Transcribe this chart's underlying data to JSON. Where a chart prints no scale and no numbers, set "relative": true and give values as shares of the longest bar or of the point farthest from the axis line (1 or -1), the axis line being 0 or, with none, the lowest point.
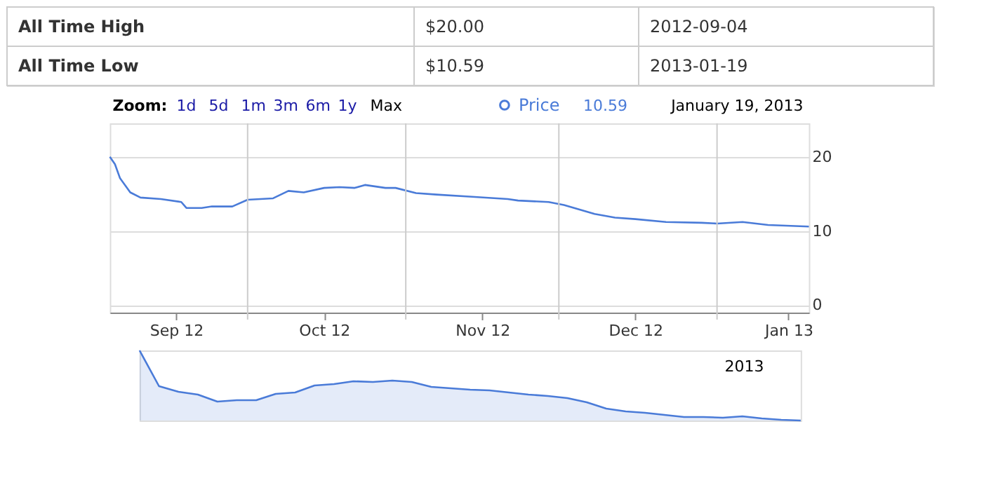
{
  "chart_data": [
    {
      "type": "line",
      "annotations": [
        "All Time High",
        "$20.00",
        "2012-09-04",
        "All Time Low",
        "$10.59",
        "2013-01-19",
        "Zoom:",
        "1d",
        "5d",
        "1m",
        "3m",
        "6m",
        "1y",
        "Max",
        "10.59",
        "January 19, 2013"
      ],
      "x": [
        "2012-09-04",
        "2012-09-05",
        "2012-09-06",
        "2012-09-08",
        "2012-09-10",
        "2012-09-14",
        "2012-09-18",
        "2012-09-19",
        "2012-09-22",
        "2012-09-24",
        "2012-09-28",
        "2012-10-01",
        "2012-10-06",
        "2012-10-09",
        "2012-10-12",
        "2012-10-16",
        "2012-10-19",
        "2012-10-22",
        "2012-10-24",
        "2012-10-28",
        "2012-10-30",
        "2012-11-03",
        "2012-11-07",
        "2012-11-14",
        "2012-11-21",
        "2012-11-23",
        "2012-11-29",
        "2012-12-02",
        "2012-12-04",
        "2012-12-08",
        "2012-12-12",
        "2012-12-16",
        "2012-12-22",
        "2012-12-29",
        "2013-01-01",
        "2013-01-06",
        "2013-01-11",
        "2013-01-19"
      ],
      "series": [
        {
          "name": "Price",
          "color": "#4a7bd8",
          "values": [
            20.0,
            19.0,
            17.1,
            15.2,
            14.5,
            14.3,
            13.9,
            13.1,
            13.1,
            13.3,
            13.3,
            14.2,
            14.4,
            15.4,
            15.2,
            15.8,
            15.9,
            15.8,
            16.2,
            15.8,
            15.8,
            15.1,
            14.9,
            14.6,
            14.3,
            14.1,
            13.9,
            13.5,
            13.1,
            12.3,
            11.8,
            11.6,
            11.2,
            11.1,
            11.0,
            11.2,
            10.8,
            10.59
          ]
        }
      ],
      "xlim": [
        "2012-09-04",
        "2013-01-19"
      ],
      "xticks": [
        {
          "value": "2012-09-17",
          "label": "Sep 12"
        },
        {
          "value": "2012-10-01",
          "label": null
        },
        {
          "value": "2012-10-16",
          "label": "Oct 12"
        },
        {
          "value": "2012-11-01",
          "label": null
        },
        {
          "value": "2012-11-16",
          "label": "Nov 12"
        },
        {
          "value": "2012-12-01",
          "label": null
        },
        {
          "value": "2012-12-16",
          "label": "Dec 12"
        },
        {
          "value": "2013-01-01",
          "label": null
        },
        {
          "value": "2013-01-15",
          "label": "Jan 13"
        }
      ],
      "ylim": [
        -1,
        24.5
      ],
      "yticks": [
        0,
        10,
        20
      ],
      "grid": true,
      "legend": "top right"
    },
    {
      "type": "area",
      "relative": true,
      "annotations": [
        "2013"
      ],
      "categories": [
        null,
        null,
        null,
        null,
        null,
        null,
        null,
        null,
        null,
        null,
        null,
        null,
        null,
        null,
        null,
        null,
        null,
        null,
        null,
        null,
        null,
        null,
        null,
        null,
        null,
        null,
        null,
        null,
        null,
        null,
        null,
        null,
        null,
        null,
        null
      ],
      "series": [
        {
          "color": "#4a7bd8",
          "values": [
            1,
            0.49,
            0.41,
            0.37,
            0.27,
            0.29,
            0.29,
            0.38,
            0.4,
            0.5,
            0.52,
            0.56,
            0.55,
            0.57,
            0.55,
            0.48,
            0.46,
            0.44,
            0.43,
            0.4,
            0.37,
            0.35,
            0.32,
            0.26,
            0.17,
            0.13,
            0.11,
            0.08,
            0.05,
            0.05,
            0.04,
            0.06,
            0.03,
            0.01,
            0
          ]
        }
      ]
    }
  ]
}
